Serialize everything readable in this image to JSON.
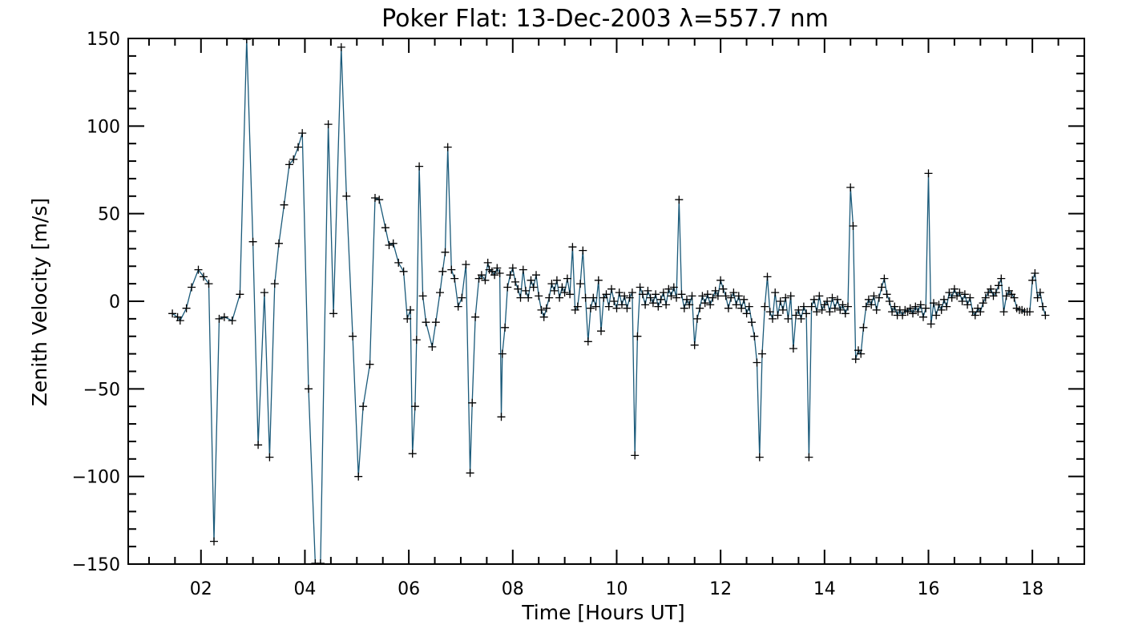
{
  "chart_data": {
    "type": "line",
    "title": "Poker Flat: 13-Dec-2003 λ=557.7 nm",
    "xlabel": "Time [Hours UT]",
    "ylabel": "Zenith Velocity [m/s]",
    "xlim": [
      0.6,
      19.0
    ],
    "ylim": [
      -150,
      150
    ],
    "x_major_ticks": [
      2,
      4,
      6,
      8,
      10,
      12,
      14,
      16,
      18
    ],
    "x_tick_labels": [
      "02",
      "04",
      "06",
      "08",
      "10",
      "12",
      "14",
      "16",
      "18"
    ],
    "x_minor_step": 0.5,
    "y_major_ticks": [
      -150,
      -100,
      -50,
      0,
      50,
      100,
      150
    ],
    "y_tick_labels": [
      "−150",
      "−100",
      "−50",
      "0",
      "50",
      "100",
      "150"
    ],
    "y_minor_step": 10,
    "marker": "plus",
    "series": [
      {
        "name": "zenith-velocity",
        "color": "#1a5a7a",
        "points": [
          [
            1.45,
            -7
          ],
          [
            1.55,
            -9
          ],
          [
            1.6,
            -11
          ],
          [
            1.72,
            -4
          ],
          [
            1.82,
            8
          ],
          [
            1.95,
            18
          ],
          [
            2.05,
            14
          ],
          [
            2.15,
            10
          ],
          [
            2.25,
            -137
          ],
          [
            2.35,
            -10
          ],
          [
            2.45,
            -9
          ],
          [
            2.6,
            -11
          ],
          [
            2.75,
            4
          ],
          [
            2.88,
            150
          ],
          [
            3.0,
            34
          ],
          [
            3.1,
            -82
          ],
          [
            3.22,
            5
          ],
          [
            3.32,
            -89
          ],
          [
            3.42,
            10
          ],
          [
            3.5,
            33
          ],
          [
            3.6,
            55
          ],
          [
            3.7,
            78
          ],
          [
            3.78,
            81
          ],
          [
            3.87,
            88
          ],
          [
            3.95,
            96
          ],
          [
            4.07,
            -50
          ],
          [
            4.2,
            -150
          ],
          [
            4.3,
            -150
          ],
          [
            4.45,
            101
          ],
          [
            4.55,
            -7
          ],
          [
            4.7,
            145
          ],
          [
            4.8,
            60
          ],
          [
            4.92,
            -20
          ],
          [
            5.03,
            -100
          ],
          [
            5.12,
            -60
          ],
          [
            5.25,
            -36
          ],
          [
            5.35,
            59
          ],
          [
            5.43,
            58
          ],
          [
            5.55,
            42
          ],
          [
            5.62,
            32
          ],
          [
            5.7,
            33
          ],
          [
            5.8,
            22
          ],
          [
            5.9,
            17
          ],
          [
            5.97,
            -10
          ],
          [
            6.03,
            -5
          ],
          [
            6.07,
            -87
          ],
          [
            6.12,
            -60
          ],
          [
            6.15,
            -22
          ],
          [
            6.2,
            77
          ],
          [
            6.27,
            3
          ],
          [
            6.33,
            -12
          ],
          [
            6.45,
            -26
          ],
          [
            6.52,
            -12
          ],
          [
            6.6,
            5
          ],
          [
            6.65,
            17
          ],
          [
            6.7,
            28
          ],
          [
            6.75,
            88
          ],
          [
            6.82,
            18
          ],
          [
            6.88,
            13
          ],
          [
            6.95,
            -3
          ],
          [
            7.02,
            2
          ],
          [
            7.1,
            21
          ],
          [
            7.18,
            -98
          ],
          [
            7.22,
            -58
          ],
          [
            7.28,
            -9
          ],
          [
            7.35,
            13
          ],
          [
            7.4,
            15
          ],
          [
            7.47,
            12
          ],
          [
            7.52,
            22
          ],
          [
            7.55,
            18
          ],
          [
            7.6,
            17
          ],
          [
            7.65,
            15
          ],
          [
            7.7,
            19
          ],
          [
            7.75,
            16
          ],
          [
            7.78,
            -66
          ],
          [
            7.8,
            -30
          ],
          [
            7.85,
            -15
          ],
          [
            7.9,
            8
          ],
          [
            7.95,
            15
          ],
          [
            8.0,
            19
          ],
          [
            8.05,
            11
          ],
          [
            8.1,
            7
          ],
          [
            8.15,
            2
          ],
          [
            8.2,
            18
          ],
          [
            8.25,
            6
          ],
          [
            8.3,
            2
          ],
          [
            8.35,
            12
          ],
          [
            8.4,
            8
          ],
          [
            8.45,
            15
          ],
          [
            8.5,
            3
          ],
          [
            8.55,
            -5
          ],
          [
            8.6,
            -9
          ],
          [
            8.65,
            -4
          ],
          [
            8.7,
            2
          ],
          [
            8.75,
            10
          ],
          [
            8.8,
            6
          ],
          [
            8.85,
            12
          ],
          [
            8.9,
            2
          ],
          [
            8.95,
            8
          ],
          [
            9.0,
            5
          ],
          [
            9.05,
            13
          ],
          [
            9.1,
            4
          ],
          [
            9.15,
            31
          ],
          [
            9.2,
            -5
          ],
          [
            9.25,
            -3
          ],
          [
            9.3,
            10
          ],
          [
            9.35,
            29
          ],
          [
            9.4,
            2
          ],
          [
            9.45,
            -23
          ],
          [
            9.5,
            -4
          ],
          [
            9.55,
            2
          ],
          [
            9.6,
            -3
          ],
          [
            9.65,
            12
          ],
          [
            9.7,
            -17
          ],
          [
            9.75,
            2
          ],
          [
            9.8,
            4
          ],
          [
            9.85,
            -3
          ],
          [
            9.9,
            7
          ],
          [
            9.95,
            0
          ],
          [
            10.0,
            -4
          ],
          [
            10.05,
            5
          ],
          [
            10.1,
            -2
          ],
          [
            10.15,
            3
          ],
          [
            10.2,
            -4
          ],
          [
            10.25,
            2
          ],
          [
            10.3,
            5
          ],
          [
            10.35,
            -88
          ],
          [
            10.4,
            -20
          ],
          [
            10.45,
            8
          ],
          [
            10.5,
            4
          ],
          [
            10.55,
            -2
          ],
          [
            10.6,
            6
          ],
          [
            10.65,
            2
          ],
          [
            10.7,
            -1
          ],
          [
            10.75,
            4
          ],
          [
            10.8,
            -3
          ],
          [
            10.85,
            1
          ],
          [
            10.9,
            5
          ],
          [
            10.95,
            -2
          ],
          [
            11.0,
            7
          ],
          [
            11.05,
            3
          ],
          [
            11.1,
            8
          ],
          [
            11.15,
            2
          ],
          [
            11.2,
            58
          ],
          [
            11.25,
            4
          ],
          [
            11.3,
            -4
          ],
          [
            11.35,
            1
          ],
          [
            11.4,
            -2
          ],
          [
            11.45,
            3
          ],
          [
            11.5,
            -25
          ],
          [
            11.55,
            -10
          ],
          [
            11.6,
            -4
          ],
          [
            11.65,
            3
          ],
          [
            11.7,
            -1
          ],
          [
            11.75,
            4
          ],
          [
            11.8,
            -2
          ],
          [
            11.85,
            2
          ],
          [
            11.9,
            6
          ],
          [
            11.95,
            3
          ],
          [
            12.0,
            12
          ],
          [
            12.05,
            7
          ],
          [
            12.1,
            3
          ],
          [
            12.15,
            -4
          ],
          [
            12.2,
            2
          ],
          [
            12.25,
            5
          ],
          [
            12.3,
            -2
          ],
          [
            12.35,
            3
          ],
          [
            12.4,
            -4
          ],
          [
            12.45,
            1
          ],
          [
            12.5,
            -7
          ],
          [
            12.55,
            -3
          ],
          [
            12.6,
            -12
          ],
          [
            12.65,
            -20
          ],
          [
            12.7,
            -35
          ],
          [
            12.75,
            -89
          ],
          [
            12.8,
            -30
          ],
          [
            12.85,
            -3
          ],
          [
            12.9,
            14
          ],
          [
            12.95,
            -6
          ],
          [
            13.0,
            -10
          ],
          [
            13.05,
            5
          ],
          [
            13.1,
            -8
          ],
          [
            13.15,
            0
          ],
          [
            13.2,
            -5
          ],
          [
            13.25,
            2
          ],
          [
            13.3,
            -10
          ],
          [
            13.35,
            3
          ],
          [
            13.4,
            -27
          ],
          [
            13.45,
            -8
          ],
          [
            13.5,
            -5
          ],
          [
            13.55,
            -10
          ],
          [
            13.6,
            -3
          ],
          [
            13.65,
            -7
          ],
          [
            13.7,
            -89
          ],
          [
            13.75,
            -3
          ],
          [
            13.8,
            1
          ],
          [
            13.85,
            -6
          ],
          [
            13.9,
            3
          ],
          [
            13.95,
            -5
          ],
          [
            14.0,
            -2
          ],
          [
            14.05,
            0
          ],
          [
            14.1,
            -6
          ],
          [
            14.15,
            2
          ],
          [
            14.2,
            -4
          ],
          [
            14.25,
            1
          ],
          [
            14.3,
            -5
          ],
          [
            14.35,
            -2
          ],
          [
            14.4,
            -7
          ],
          [
            14.45,
            -3
          ],
          [
            14.5,
            65
          ],
          [
            14.55,
            43
          ],
          [
            14.6,
            -33
          ],
          [
            14.65,
            -28
          ],
          [
            14.7,
            -30
          ],
          [
            14.75,
            -15
          ],
          [
            14.8,
            -3
          ],
          [
            14.85,
            1
          ],
          [
            14.9,
            -2
          ],
          [
            14.95,
            3
          ],
          [
            15.0,
            -5
          ],
          [
            15.05,
            2
          ],
          [
            15.1,
            8
          ],
          [
            15.15,
            13
          ],
          [
            15.2,
            4
          ],
          [
            15.25,
            0
          ],
          [
            15.3,
            -6
          ],
          [
            15.35,
            -3
          ],
          [
            15.4,
            -8
          ],
          [
            15.45,
            -5
          ],
          [
            15.5,
            -8
          ],
          [
            15.55,
            -5
          ],
          [
            15.6,
            -6
          ],
          [
            15.65,
            -4
          ],
          [
            15.7,
            -7
          ],
          [
            15.75,
            -3
          ],
          [
            15.8,
            -6
          ],
          [
            15.85,
            -2
          ],
          [
            15.9,
            -9
          ],
          [
            15.95,
            -4
          ],
          [
            16.0,
            73
          ],
          [
            16.05,
            -13
          ],
          [
            16.1,
            -1
          ],
          [
            16.15,
            -8
          ],
          [
            16.2,
            -2
          ],
          [
            16.25,
            -5
          ],
          [
            16.3,
            1
          ],
          [
            16.35,
            -3
          ],
          [
            16.4,
            5
          ],
          [
            16.45,
            2
          ],
          [
            16.5,
            7
          ],
          [
            16.55,
            3
          ],
          [
            16.6,
            5
          ],
          [
            16.65,
            0
          ],
          [
            16.7,
            4
          ],
          [
            16.75,
            -2
          ],
          [
            16.8,
            2
          ],
          [
            16.85,
            -6
          ],
          [
            16.9,
            -8
          ],
          [
            16.95,
            -4
          ],
          [
            17.0,
            -6
          ],
          [
            17.05,
            -1
          ],
          [
            17.1,
            2
          ],
          [
            17.15,
            5
          ],
          [
            17.2,
            7
          ],
          [
            17.25,
            3
          ],
          [
            17.3,
            5
          ],
          [
            17.35,
            9
          ],
          [
            17.4,
            13
          ],
          [
            17.45,
            -6
          ],
          [
            17.5,
            3
          ],
          [
            17.55,
            6
          ],
          [
            17.6,
            4
          ],
          [
            17.65,
            2
          ],
          [
            17.7,
            -4
          ],
          [
            17.75,
            -5
          ],
          [
            17.8,
            -5
          ],
          [
            17.85,
            -6
          ],
          [
            17.9,
            -6
          ],
          [
            17.95,
            -6
          ],
          [
            18.0,
            12
          ],
          [
            18.05,
            16
          ],
          [
            18.1,
            2
          ],
          [
            18.15,
            5
          ],
          [
            18.2,
            -3
          ],
          [
            18.25,
            -8
          ]
        ]
      }
    ]
  }
}
